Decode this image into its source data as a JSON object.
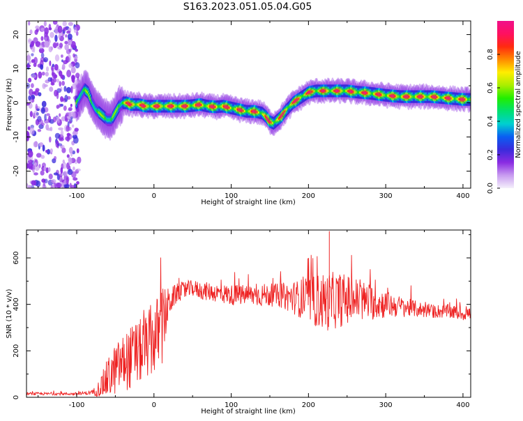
{
  "title": "S163.2023.051.05.04.G05",
  "colors": {
    "snr_line": "#ee2222",
    "colorbar_stops": [
      "#f5f0fb",
      "#c89cf0",
      "#8a2be2",
      "#3a2bdc",
      "#0a5ef2",
      "#00d0d0",
      "#00e070",
      "#22ee00",
      "#aaee00",
      "#ffee00",
      "#ff8a00",
      "#ff2a10",
      "#ff1060",
      "#f0108a"
    ]
  },
  "chart_data": [
    {
      "type": "heatmap",
      "xlabel": "Height of straight line (km)",
      "ylabel": "Frequency (Hz)",
      "xlim": [
        -165,
        410
      ],
      "ylim": [
        -25,
        24
      ],
      "xticks": [
        -100,
        0,
        100,
        200,
        300,
        400
      ],
      "yticks": [
        -20,
        -10,
        0,
        10,
        20
      ],
      "noise_region_x": [
        -165,
        -100
      ],
      "ridge": {
        "x": [
          -100,
          -95,
          -90,
          -85,
          -80,
          -75,
          -70,
          -65,
          -60,
          -55,
          -50,
          -45,
          -40,
          -35,
          -30,
          -20,
          -10,
          0,
          10,
          20,
          30,
          40,
          50,
          60,
          70,
          80,
          90,
          100,
          110,
          120,
          130,
          140,
          145,
          150,
          155,
          160,
          165,
          170,
          180,
          190,
          200,
          210,
          220,
          230,
          240,
          250,
          260,
          270,
          280,
          290,
          300,
          310,
          320,
          330,
          340,
          350,
          360,
          370,
          380,
          390,
          400,
          410
        ],
        "y": [
          0,
          2,
          4,
          3,
          0,
          -2,
          -3,
          -4,
          -5,
          -5,
          -3,
          -1,
          0,
          0,
          -0.5,
          -0.5,
          -1,
          -1,
          -1,
          -1,
          -1,
          -1,
          -0.8,
          -0.5,
          -1,
          -1.2,
          -1,
          -1.5,
          -2,
          -2.5,
          -2.5,
          -3,
          -4,
          -5.5,
          -6,
          -5,
          -4,
          -2.5,
          0,
          1.5,
          3,
          3.5,
          3.5,
          3.5,
          3.5,
          3.5,
          3.2,
          3,
          2.8,
          2.5,
          2.2,
          2,
          1.8,
          1.8,
          1.8,
          1.8,
          1.8,
          1.6,
          1.4,
          1.2,
          1,
          1
        ]
      },
      "colorbar": {
        "label": "Normalized spectral amplitude",
        "range": [
          0,
          1
        ],
        "ticks": [
          "0.0",
          "0.2",
          "0.4",
          "0.6",
          "0.8"
        ]
      }
    },
    {
      "type": "line",
      "xlabel": "Height of straight line (km)",
      "ylabel": "SNR (10 * v/v)",
      "xlim": [
        -165,
        410
      ],
      "ylim": [
        0,
        720
      ],
      "xticks": [
        -100,
        0,
        100,
        200,
        300,
        400
      ],
      "yticks": [
        0,
        200,
        400,
        600
      ],
      "series": [
        {
          "x": [
            -165,
            -100,
            -80,
            -70,
            -60,
            -50,
            -40,
            -30,
            -20,
            -10,
            0,
            10,
            20,
            30,
            40,
            50,
            60,
            80,
            100,
            120,
            140,
            160,
            180,
            200,
            220,
            240,
            260,
            280,
            300,
            320,
            340,
            360,
            380,
            400,
            410
          ],
          "y": [
            15,
            15,
            20,
            40,
            80,
            120,
            150,
            170,
            190,
            220,
            250,
            300,
            410,
            450,
            460,
            470,
            460,
            450,
            440,
            440,
            440,
            440,
            430,
            420,
            410,
            420,
            420,
            410,
            400,
            390,
            380,
            370,
            370,
            360,
            360
          ],
          "amp": [
            6,
            6,
            10,
            40,
            90,
            110,
            120,
            140,
            140,
            140,
            160,
            180,
            60,
            40,
            40,
            35,
            40,
            40,
            45,
            45,
            50,
            50,
            70,
            100,
            130,
            120,
            100,
            80,
            60,
            45,
            35,
            30,
            30,
            30,
            30
          ]
        }
      ]
    }
  ]
}
